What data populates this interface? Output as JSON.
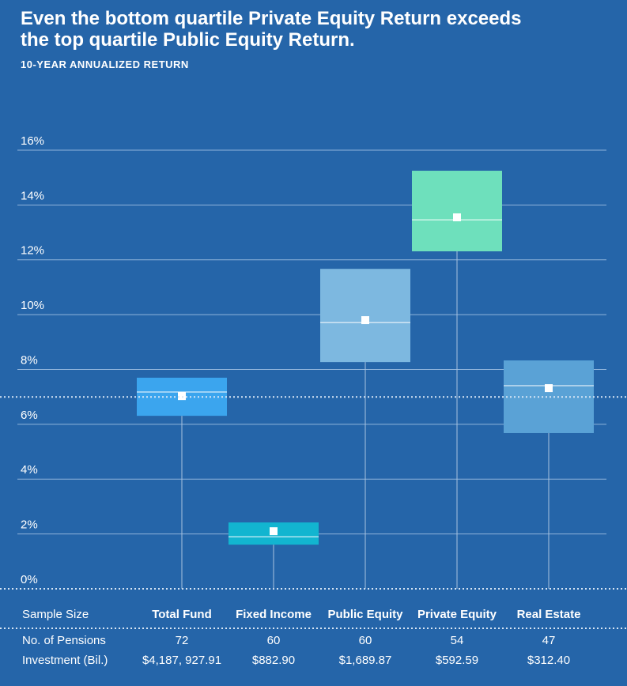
{
  "chart_data": {
    "type": "box",
    "title": "Even the bottom quartile Private Equity Return exceeds the top quartile Public Equity Return.",
    "subtitle": "10-YEAR ANNUALIZED RETURN",
    "categories": [
      "Total Fund",
      "Fixed Income",
      "Public Equity",
      "Private Equity",
      "Real Estate"
    ],
    "q1": [
      6.31,
      1.61,
      8.27,
      12.31,
      5.68
    ],
    "median": [
      7.18,
      1.9,
      9.71,
      13.46,
      7.41
    ],
    "q3": [
      7.7,
      2.42,
      11.67,
      15.25,
      8.33
    ],
    "mean": [
      7.03,
      2.1,
      9.8,
      13.55,
      7.32
    ],
    "colors": [
      "#3ba5ee",
      "#12b5d0",
      "#7db8e0",
      "#6ee0bc",
      "#5aa2d6"
    ],
    "reference_value": 7,
    "ylim": [
      0,
      16
    ],
    "yticks": [
      {
        "value": 0,
        "label": "0%"
      },
      {
        "value": 2,
        "label": "2%"
      },
      {
        "value": 4,
        "label": "4%"
      },
      {
        "value": 6,
        "label": "6%"
      },
      {
        "value": 8,
        "label": "8%"
      },
      {
        "value": 10,
        "label": "10%"
      },
      {
        "value": 12,
        "label": "12%"
      },
      {
        "value": 14,
        "label": "14%"
      },
      {
        "value": 16,
        "label": "16%"
      }
    ],
    "grid": true
  },
  "table": {
    "header": "Sample Size",
    "rows": [
      {
        "label": "No. of Pensions",
        "cells": [
          72,
          60,
          60,
          54,
          47
        ]
      },
      {
        "label": "Investment (Bil.)",
        "cells": [
          "$4,187, 927.91",
          "$882.90",
          "$1,689.87",
          "$592.59",
          "$312.40"
        ]
      }
    ]
  }
}
